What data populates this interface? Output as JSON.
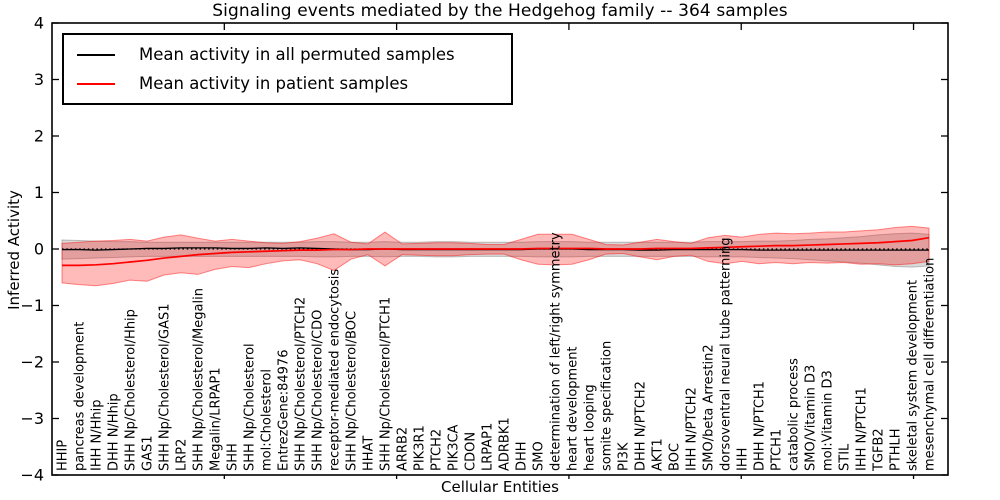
{
  "title": "Signaling events mediated by the Hedgehog family -- 364 samples",
  "axes": {
    "xlabel": "Cellular Entities",
    "ylabel": "Inferred Activity",
    "ylim": [
      -4,
      4
    ],
    "yticks": [
      -4,
      -3,
      -2,
      -1,
      0,
      1,
      2,
      3,
      4
    ],
    "ytick_labels": [
      "−4",
      "−3",
      "−2",
      "−1",
      "0",
      "1",
      "2",
      "3",
      "4"
    ],
    "xticks": [
      10,
      20,
      30,
      40,
      50
    ]
  },
  "legend": {
    "items": [
      {
        "label": "Mean activity in all permuted samples",
        "color": "#000000"
      },
      {
        "label": "Mean activity in patient samples",
        "color": "#ff0000"
      }
    ]
  },
  "colors": {
    "patient_line": "#ff0000",
    "permuted_line": "#000000",
    "patient_band_fill": "rgba(255,0,0,0.27)",
    "patient_band_edge": "rgba(255,0,0,0.45)",
    "permuted_band_fill": "rgba(130,130,130,0.30)",
    "permuted_band_edge": "rgba(130,130,130,0.50)"
  },
  "chart_data": {
    "type": "line",
    "title": "Signaling events mediated by the Hedgehog family -- 364 samples",
    "xlabel": "Cellular Entities",
    "ylabel": "Inferred Activity",
    "ylim": [
      -4,
      4
    ],
    "grid": false,
    "legend_position": "upper left",
    "zero_line": 0,
    "categories": [
      "HHIP",
      "pancreas development",
      "IHH N/Hhip",
      "DHH N/Hhip",
      "SHH Np/Cholesterol/Hhip",
      "GAS1",
      "SHH Np/Cholesterol/GAS1",
      "LRP2",
      "SHH Np/Cholesterol/Megalin",
      "Megalin/LRPAP1",
      "SHH",
      "SHH Np/Cholesterol",
      "mol:Cholesterol",
      "EntrezGene:84976",
      "SHH Np/Cholesterol/PTCH2",
      "SHH Np/Cholesterol/CDO",
      "receptor-mediated endocytosis",
      "SHH Np/Cholesterol/BOC",
      "HHAT",
      "SHH Np/Cholesterol/PTCH1",
      "ARRB2",
      "PIK3R1",
      "PTCH2",
      "PIK3CA",
      "CDON",
      "LRPAP1",
      "ADRBK1",
      "DHH",
      "SMO",
      "determination of left/right symmetry",
      "heart development",
      "heart looping",
      "somite specification",
      "PI3K",
      "DHH N/PTCH2",
      "AKT1",
      "BOC",
      "IHH N/PTCH2",
      "SMO/beta Arrestin2",
      "dorsoventral neural tube patterning",
      "IHH",
      "DHH N/PTCH1",
      "PTCH1",
      "catabolic process",
      "SMO/Vitamin D3",
      "mol:Vitamin D3",
      "STIL",
      "IHH N/PTCH1",
      "TGFB2",
      "PTHLH",
      "skeletal system development",
      "mesenchymal cell differentiation"
    ],
    "series": [
      {
        "name": "Mean activity in all permuted samples",
        "role": "mean",
        "color": "#000000",
        "values": [
          -0.01,
          -0.01,
          -0.02,
          -0.01,
          0.0,
          0.01,
          0.01,
          0.02,
          0.02,
          0.02,
          0.01,
          0.01,
          0.02,
          0.01,
          0.02,
          0.01,
          0.0,
          -0.01,
          -0.01,
          0.0,
          -0.01,
          -0.01,
          -0.01,
          -0.01,
          -0.01,
          -0.01,
          -0.01,
          -0.01,
          0.0,
          0.0,
          0.0,
          -0.01,
          -0.01,
          -0.01,
          -0.02,
          -0.02,
          -0.01,
          -0.01,
          -0.01,
          -0.01,
          -0.01,
          -0.02,
          -0.02,
          -0.02,
          -0.02,
          -0.02,
          -0.02,
          -0.02,
          -0.02,
          -0.02,
          -0.02,
          -0.02
        ]
      },
      {
        "name": "Permuted samples band upper",
        "role": "band_upper",
        "color": "#888888",
        "values": [
          0.16,
          0.15,
          0.14,
          0.13,
          0.13,
          0.12,
          0.12,
          0.12,
          0.12,
          0.12,
          0.12,
          0.12,
          0.12,
          0.12,
          0.12,
          0.13,
          0.13,
          0.12,
          0.12,
          0.13,
          0.12,
          0.12,
          0.13,
          0.13,
          0.12,
          0.12,
          0.12,
          0.12,
          0.13,
          0.13,
          0.13,
          0.12,
          0.12,
          0.12,
          0.12,
          0.12,
          0.12,
          0.12,
          0.13,
          0.13,
          0.13,
          0.14,
          0.14,
          0.15,
          0.17,
          0.18,
          0.2,
          0.22,
          0.25,
          0.27,
          0.28,
          0.26
        ]
      },
      {
        "name": "Permuted samples band lower",
        "role": "band_lower",
        "color": "#888888",
        "values": [
          -0.18,
          -0.17,
          -0.16,
          -0.15,
          -0.14,
          -0.13,
          -0.13,
          -0.13,
          -0.13,
          -0.13,
          -0.13,
          -0.13,
          -0.13,
          -0.13,
          -0.13,
          -0.14,
          -0.14,
          -0.13,
          -0.13,
          -0.14,
          -0.13,
          -0.13,
          -0.14,
          -0.14,
          -0.13,
          -0.13,
          -0.13,
          -0.13,
          -0.14,
          -0.14,
          -0.14,
          -0.13,
          -0.13,
          -0.13,
          -0.13,
          -0.13,
          -0.13,
          -0.13,
          -0.14,
          -0.14,
          -0.14,
          -0.15,
          -0.16,
          -0.17,
          -0.19,
          -0.21,
          -0.23,
          -0.25,
          -0.28,
          -0.31,
          -0.32,
          -0.3
        ]
      },
      {
        "name": "Mean activity in patient samples",
        "role": "mean",
        "color": "#ff0000",
        "values": [
          -0.29,
          -0.29,
          -0.28,
          -0.26,
          -0.23,
          -0.2,
          -0.16,
          -0.13,
          -0.1,
          -0.08,
          -0.06,
          -0.05,
          -0.04,
          -0.03,
          -0.02,
          -0.02,
          -0.01,
          -0.01,
          0.0,
          0.0,
          0.0,
          0.0,
          0.0,
          0.0,
          0.0,
          0.0,
          0.0,
          0.0,
          0.01,
          0.01,
          0.01,
          0.01,
          0.0,
          0.0,
          0.0,
          0.01,
          0.01,
          0.01,
          0.02,
          0.03,
          0.04,
          0.05,
          0.06,
          0.06,
          0.07,
          0.08,
          0.09,
          0.1,
          0.11,
          0.13,
          0.15,
          0.2
        ]
      },
      {
        "name": "Patient samples band upper",
        "role": "band_upper",
        "color": "#ff0000",
        "values": [
          0.1,
          0.12,
          0.14,
          0.15,
          0.17,
          0.14,
          0.21,
          0.25,
          0.19,
          0.14,
          0.17,
          0.14,
          0.11,
          0.1,
          0.13,
          0.19,
          0.27,
          0.12,
          0.09,
          0.3,
          0.09,
          0.1,
          0.11,
          0.11,
          0.1,
          0.08,
          0.08,
          0.17,
          0.26,
          0.26,
          0.26,
          0.17,
          0.08,
          0.07,
          0.12,
          0.17,
          0.13,
          0.1,
          0.2,
          0.24,
          0.21,
          0.26,
          0.28,
          0.27,
          0.28,
          0.3,
          0.3,
          0.32,
          0.34,
          0.38,
          0.4,
          0.37
        ]
      },
      {
        "name": "Patient samples band lower",
        "role": "band_lower",
        "color": "#ff0000",
        "values": [
          -0.6,
          -0.63,
          -0.65,
          -0.61,
          -0.55,
          -0.57,
          -0.46,
          -0.42,
          -0.45,
          -0.36,
          -0.31,
          -0.33,
          -0.26,
          -0.21,
          -0.19,
          -0.26,
          -0.38,
          -0.18,
          -0.1,
          -0.3,
          -0.1,
          -0.11,
          -0.12,
          -0.12,
          -0.1,
          -0.09,
          -0.09,
          -0.19,
          -0.27,
          -0.28,
          -0.27,
          -0.19,
          -0.09,
          -0.08,
          -0.14,
          -0.19,
          -0.13,
          -0.11,
          -0.22,
          -0.26,
          -0.22,
          -0.26,
          -0.24,
          -0.26,
          -0.24,
          -0.25,
          -0.24,
          -0.27,
          -0.26,
          -0.28,
          -0.26,
          -0.22
        ]
      }
    ]
  }
}
